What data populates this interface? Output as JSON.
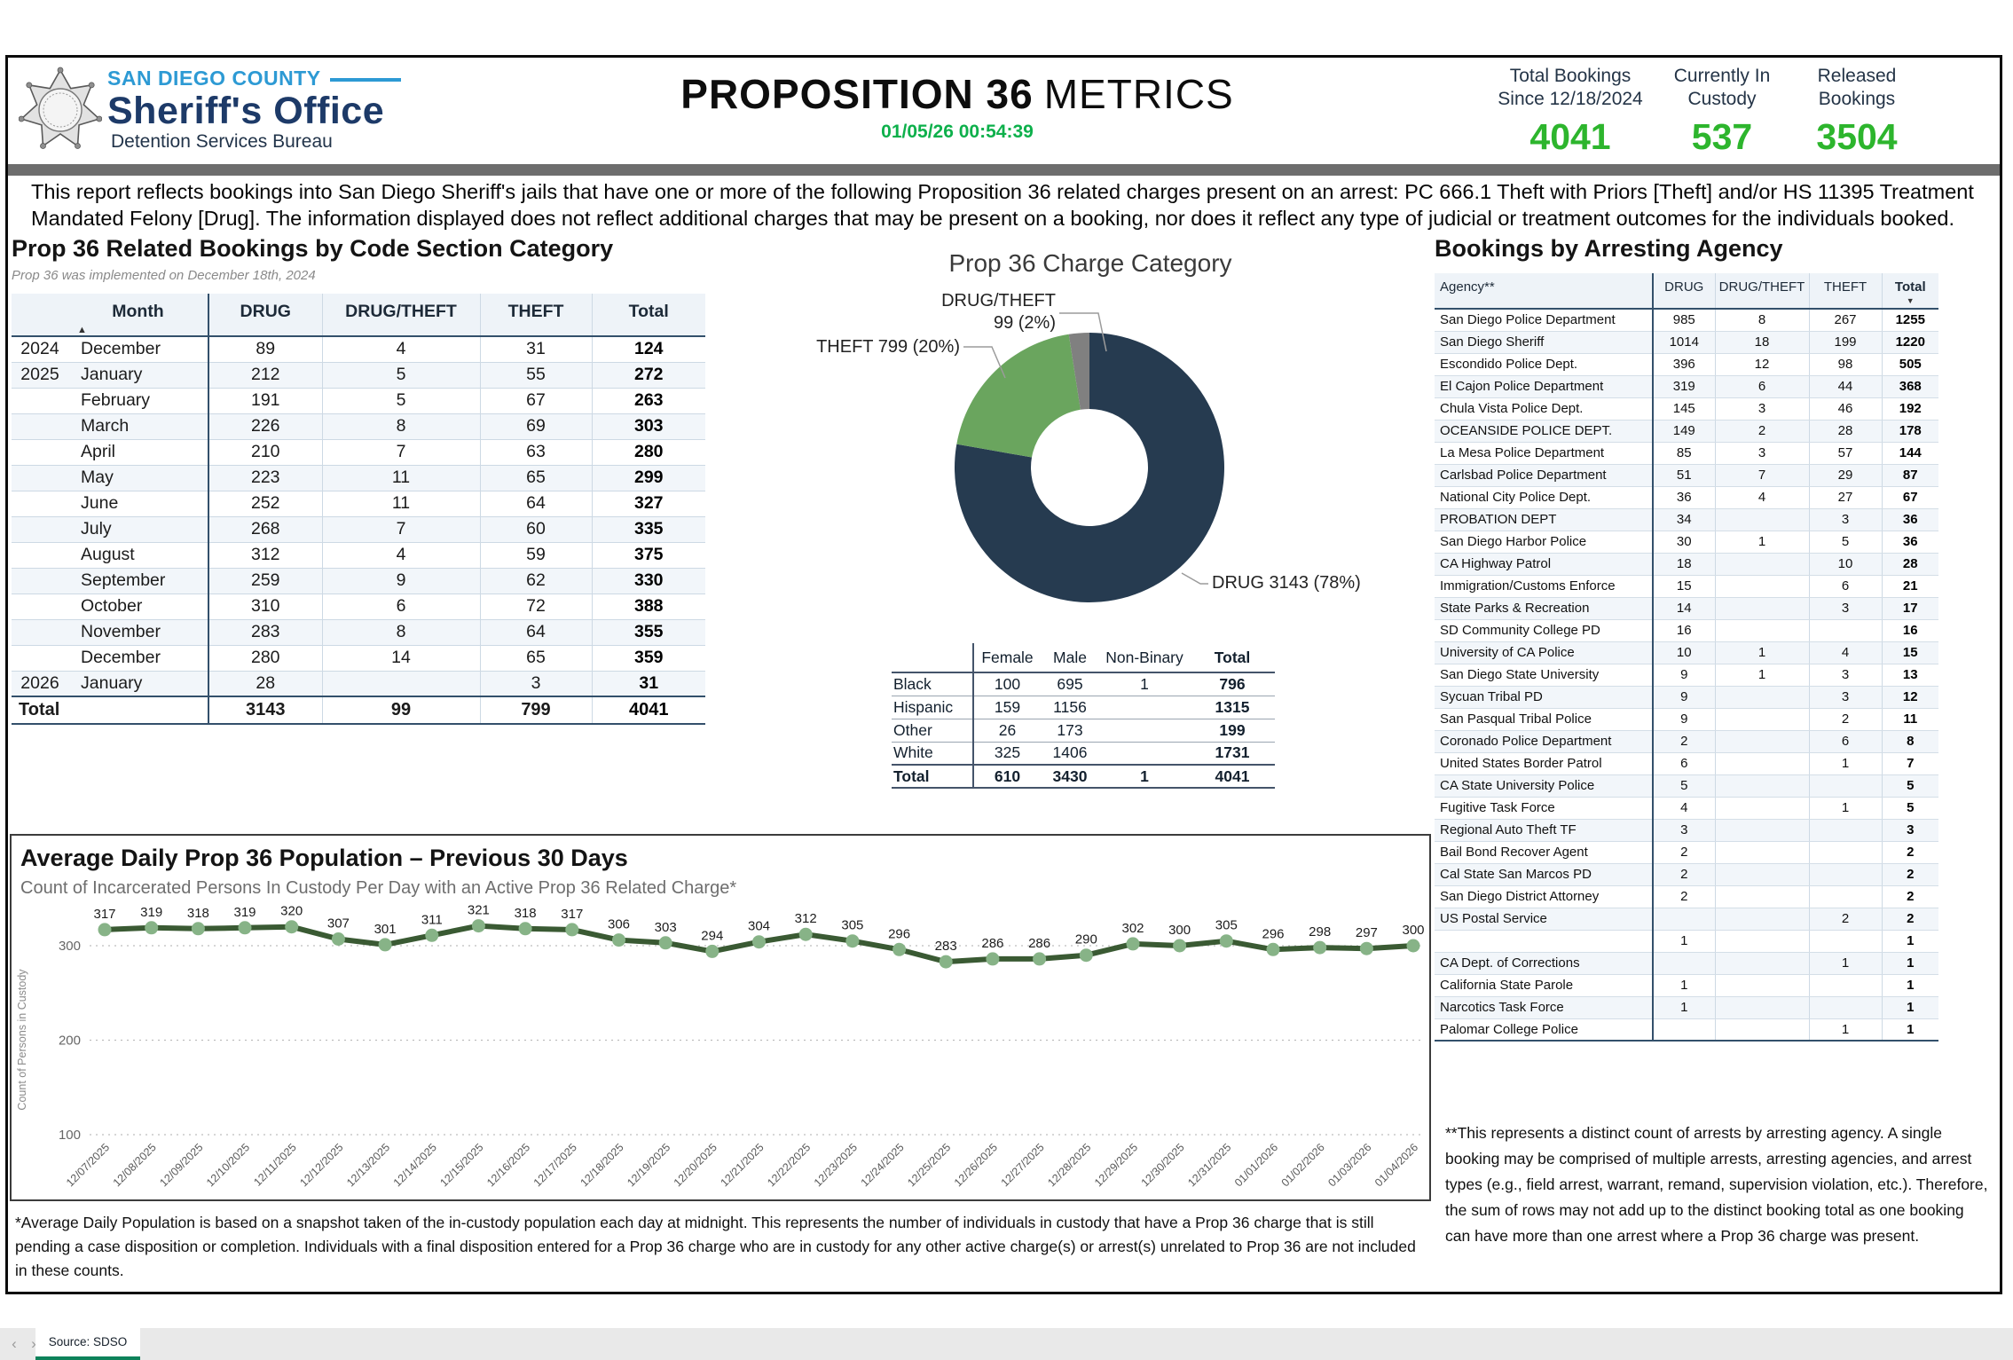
{
  "colors": {
    "accent_green": "#2db52d",
    "timestamp_green": "#0db04b",
    "navy": "#1d3a68",
    "light_blue": "#2d9ad4",
    "donut_drug": "#263b50",
    "donut_theft": "#6aa55e",
    "donut_drugtheft": "#808080",
    "line_green": "#3a5a33",
    "marker_green": "#87b387",
    "tab_teal": "#0e825a"
  },
  "header": {
    "logo": {
      "line1": "SAN DIEGO COUNTY",
      "line2": "Sheriff's Office",
      "line3": "Detention Services Bureau",
      "badge_icon": "sheriff-star-badge"
    },
    "title_strong": "PROPOSITION 36",
    "title_light": "METRICS",
    "timestamp": "01/05/26 00:54:39",
    "stats": [
      {
        "label_line1": "Total Bookings",
        "label_line2": "Since 12/18/2024",
        "value": "4041"
      },
      {
        "label_line1": "Currently In",
        "label_line2": "Custody",
        "value": "537"
      },
      {
        "label_line1": "Released",
        "label_line2": "Bookings",
        "value": "3504"
      }
    ]
  },
  "intro": "This report reflects bookings into San Diego Sheriff's jails that have one or more of the following Proposition 36 related charges present on an arrest: PC 666.1 Theft with Priors [Theft] and/or HS 11395 Treatment Mandated Felony [Drug]. The information displayed does not reflect additional charges that may be present on a booking, nor does it reflect any type of judicial or treatment outcomes for the individuals booked.",
  "monthly": {
    "title": "Prop 36 Related Bookings by Code Section Category",
    "subtitle": "Prop 36 was implemented on December 18th, 2024",
    "columns": [
      "",
      "Month",
      "DRUG",
      "DRUG/THEFT",
      "THEFT",
      "Total"
    ],
    "sort_icon": "▲",
    "rows": [
      {
        "year": "2024",
        "month": "December",
        "drug": "89",
        "drug_theft": "4",
        "theft": "31",
        "total": "124"
      },
      {
        "year": "2025",
        "month": "January",
        "drug": "212",
        "drug_theft": "5",
        "theft": "55",
        "total": "272"
      },
      {
        "year": "",
        "month": "February",
        "drug": "191",
        "drug_theft": "5",
        "theft": "67",
        "total": "263"
      },
      {
        "year": "",
        "month": "March",
        "drug": "226",
        "drug_theft": "8",
        "theft": "69",
        "total": "303"
      },
      {
        "year": "",
        "month": "April",
        "drug": "210",
        "drug_theft": "7",
        "theft": "63",
        "total": "280"
      },
      {
        "year": "",
        "month": "May",
        "drug": "223",
        "drug_theft": "11",
        "theft": "65",
        "total": "299"
      },
      {
        "year": "",
        "month": "June",
        "drug": "252",
        "drug_theft": "11",
        "theft": "64",
        "total": "327"
      },
      {
        "year": "",
        "month": "July",
        "drug": "268",
        "drug_theft": "7",
        "theft": "60",
        "total": "335"
      },
      {
        "year": "",
        "month": "August",
        "drug": "312",
        "drug_theft": "4",
        "theft": "59",
        "total": "375"
      },
      {
        "year": "",
        "month": "September",
        "drug": "259",
        "drug_theft": "9",
        "theft": "62",
        "total": "330"
      },
      {
        "year": "",
        "month": "October",
        "drug": "310",
        "drug_theft": "6",
        "theft": "72",
        "total": "388"
      },
      {
        "year": "",
        "month": "November",
        "drug": "283",
        "drug_theft": "8",
        "theft": "64",
        "total": "355"
      },
      {
        "year": "",
        "month": "December",
        "drug": "280",
        "drug_theft": "14",
        "theft": "65",
        "total": "359"
      },
      {
        "year": "2026",
        "month": "January",
        "drug": "28",
        "drug_theft": "",
        "theft": "3",
        "total": "31"
      }
    ],
    "total_row": {
      "label": "Total",
      "drug": "3143",
      "drug_theft": "99",
      "theft": "799",
      "total": "4041"
    }
  },
  "donut": {
    "title": "Prop 36 Charge Category",
    "callouts": {
      "drugtheft_line1": "DRUG/THEFT",
      "drugtheft_line2": "99 (2%)",
      "theft": "THEFT 799 (20%)",
      "drug": "DRUG 3143 (78%)"
    }
  },
  "demographics": {
    "columns": [
      "",
      "Female",
      "Male",
      "Non-Binary",
      "Total"
    ],
    "rows": [
      {
        "label": "Black",
        "female": "100",
        "male": "695",
        "nonbinary": "1",
        "total": "796"
      },
      {
        "label": "Hispanic",
        "female": "159",
        "male": "1156",
        "nonbinary": "",
        "total": "1315"
      },
      {
        "label": "Other",
        "female": "26",
        "male": "173",
        "nonbinary": "",
        "total": "199"
      },
      {
        "label": "White",
        "female": "325",
        "male": "1406",
        "nonbinary": "",
        "total": "1731"
      }
    ],
    "total_row": {
      "label": "Total",
      "female": "610",
      "male": "3430",
      "nonbinary": "1",
      "total": "4041"
    }
  },
  "agency": {
    "title": "Bookings by Arresting Agency",
    "columns": [
      "Agency**",
      "DRUG",
      "DRUG/THEFT",
      "THEFT",
      "Total"
    ],
    "sort_icon": "▼",
    "rows": [
      [
        "San Diego Police Department",
        "985",
        "8",
        "267",
        "1255"
      ],
      [
        "San Diego Sheriff",
        "1014",
        "18",
        "199",
        "1220"
      ],
      [
        "Escondido Police Dept.",
        "396",
        "12",
        "98",
        "505"
      ],
      [
        "El Cajon Police Department",
        "319",
        "6",
        "44",
        "368"
      ],
      [
        "Chula Vista Police Dept.",
        "145",
        "3",
        "46",
        "192"
      ],
      [
        "OCEANSIDE POLICE DEPT.",
        "149",
        "2",
        "28",
        "178"
      ],
      [
        "La Mesa Police Department",
        "85",
        "3",
        "57",
        "144"
      ],
      [
        "Carlsbad Police Department",
        "51",
        "7",
        "29",
        "87"
      ],
      [
        "National City Police Dept.",
        "36",
        "4",
        "27",
        "67"
      ],
      [
        "PROBATION DEPT",
        "34",
        "",
        "3",
        "36"
      ],
      [
        "San Diego Harbor Police",
        "30",
        "1",
        "5",
        "36"
      ],
      [
        "CA Highway Patrol",
        "18",
        "",
        "10",
        "28"
      ],
      [
        "Immigration/Customs Enforce",
        "15",
        "",
        "6",
        "21"
      ],
      [
        "State Parks & Recreation",
        "14",
        "",
        "3",
        "17"
      ],
      [
        "SD Community College PD",
        "16",
        "",
        "",
        "16"
      ],
      [
        "University of CA Police",
        "10",
        "1",
        "4",
        "15"
      ],
      [
        "San Diego State University",
        "9",
        "1",
        "3",
        "13"
      ],
      [
        "Sycuan Tribal PD",
        "9",
        "",
        "3",
        "12"
      ],
      [
        "San Pasqual Tribal Police",
        "9",
        "",
        "2",
        "11"
      ],
      [
        "Coronado Police Department",
        "2",
        "",
        "6",
        "8"
      ],
      [
        "United States Border Patrol",
        "6",
        "",
        "1",
        "7"
      ],
      [
        "CA State University Police",
        "5",
        "",
        "",
        "5"
      ],
      [
        "Fugitive Task Force",
        "4",
        "",
        "1",
        "5"
      ],
      [
        "Regional Auto Theft TF",
        "3",
        "",
        "",
        "3"
      ],
      [
        "Bail Bond Recover Agent",
        "2",
        "",
        "",
        "2"
      ],
      [
        "Cal State San Marcos PD",
        "2",
        "",
        "",
        "2"
      ],
      [
        "San Diego District Attorney",
        "2",
        "",
        "",
        "2"
      ],
      [
        "US Postal Service",
        "",
        "",
        "2",
        "2"
      ],
      [
        "",
        "1",
        "",
        "",
        "1"
      ],
      [
        "CA Dept. of Corrections",
        "",
        "",
        "1",
        "1"
      ],
      [
        "California State Parole",
        "1",
        "",
        "",
        "1"
      ],
      [
        "Narcotics Task Force",
        "1",
        "",
        "",
        "1"
      ],
      [
        "Palomar College Police",
        "",
        "",
        "1",
        "1"
      ]
    ]
  },
  "daily": {
    "title": "Average Daily Prop 36 Population – Previous 30 Days",
    "subtitle": "Count of Incarcerated Persons In Custody Per Day with an Active Prop 36 Related Charge*",
    "y_label": "Count of Persons in Custody",
    "y_ticks": [
      300,
      200,
      100
    ]
  },
  "footnotes": {
    "left": "*Average Daily Population is based on a snapshot taken of the in-custody population each day at midnight. This represents the number of individuals in custody that have a Prop 36 charge that is still pending a case disposition or completion. Individuals with a final disposition entered for a Prop 36 charge who are in custody for any other active charge(s) or arrest(s) unrelated to Prop 36 are not included in these counts.",
    "right": "**This represents a distinct count of arrests by arresting agency. A single booking may be comprised of multiple arrests, arresting agencies, and arrest types (e.g., field arrest, warrant, remand, supervision violation, etc.). Therefore, the sum of rows may not add up to the distinct booking total as one booking can have more than one arrest where a Prop 36 charge was present."
  },
  "tabbar": {
    "prev_icon": "‹",
    "next_icon": "›",
    "tab": "Source: SDSO"
  },
  "chart_data": [
    {
      "type": "pie",
      "title": "Prop 36 Charge Category",
      "labels": [
        "DRUG",
        "THEFT",
        "DRUG/THEFT"
      ],
      "values": [
        3143,
        799,
        99
      ],
      "percent_labels": [
        "78%",
        "20%",
        "2%"
      ],
      "colors": [
        "#263b50",
        "#6aa55e",
        "#808080"
      ],
      "donut": true,
      "legend_position": "callouts"
    },
    {
      "type": "line",
      "title": "Average Daily Prop 36 Population – Previous 30 Days",
      "subtitle": "Count of Incarcerated Persons In Custody Per Day with an Active Prop 36 Related Charge*",
      "xlabel": "",
      "ylabel": "Count of Persons in Custody",
      "ylim": [
        100,
        340
      ],
      "grid": true,
      "x": [
        "12/07/2025",
        "12/08/2025",
        "12/09/2025",
        "12/10/2025",
        "12/11/2025",
        "12/12/2025",
        "12/13/2025",
        "12/14/2025",
        "12/15/2025",
        "12/16/2025",
        "12/17/2025",
        "12/18/2025",
        "12/19/2025",
        "12/20/2025",
        "12/21/2025",
        "12/22/2025",
        "12/23/2025",
        "12/24/2025",
        "12/25/2025",
        "12/26/2025",
        "12/27/2025",
        "12/28/2025",
        "12/29/2025",
        "12/30/2025",
        "12/31/2025",
        "01/01/2026",
        "01/02/2026",
        "01/03/2026",
        "01/04/2026"
      ],
      "y": [
        317,
        319,
        318,
        319,
        320,
        307,
        301,
        311,
        321,
        318,
        317,
        306,
        303,
        294,
        304,
        312,
        305,
        296,
        283,
        286,
        286,
        290,
        302,
        300,
        305,
        296,
        298,
        297,
        300
      ]
    }
  ]
}
